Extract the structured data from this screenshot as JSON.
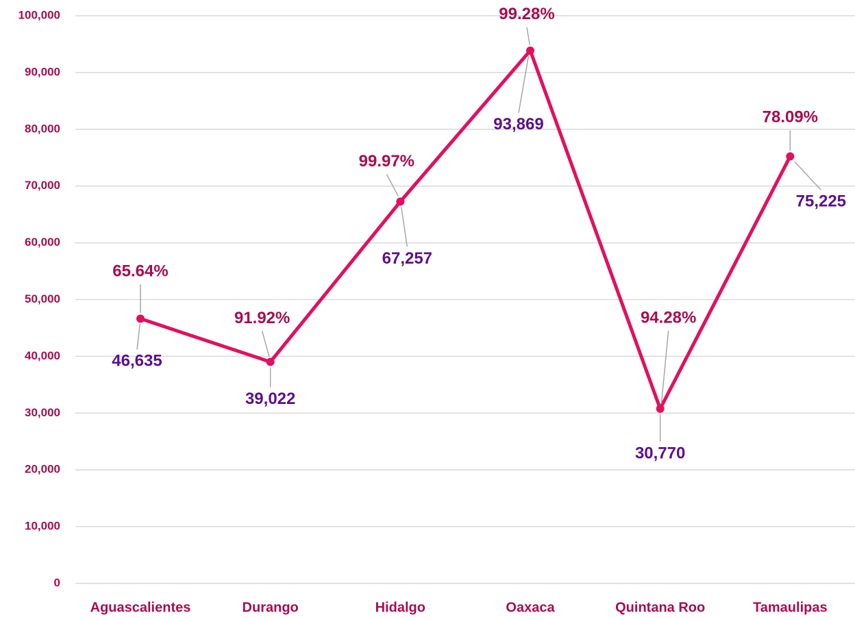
{
  "chart_data": {
    "type": "line",
    "categories": [
      "Aguascalientes",
      "Durango",
      "Hidalgo",
      "Oaxaca",
      "Quintana Roo",
      "Tamaulipas"
    ],
    "series": [
      {
        "color": "#e0115f",
        "values": [
          46635,
          39022,
          67257,
          93869,
          30770,
          75225
        ],
        "value_labels": [
          "46,635",
          "39,022",
          "67,257",
          "93,869",
          "30,770",
          "75,225"
        ]
      }
    ],
    "annotations": [
      "65.64%",
      "91.92%",
      "99.97%",
      "99.28%",
      "94.28%",
      "78.09%"
    ],
    "ylim": [
      0,
      100000
    ],
    "yticks": [
      {
        "value": 0,
        "label": "0"
      },
      {
        "value": 10000,
        "label": "10,000"
      },
      {
        "value": 20000,
        "label": "20,000"
      },
      {
        "value": 30000,
        "label": "30,000"
      },
      {
        "value": 40000,
        "label": "40,000"
      },
      {
        "value": 50000,
        "label": "50,000"
      },
      {
        "value": 60000,
        "label": "60,000"
      },
      {
        "value": 70000,
        "label": "70,000"
      },
      {
        "value": 80000,
        "label": "80,000"
      },
      {
        "value": 90000,
        "label": "90,000"
      },
      {
        "value": 100000,
        "label": "100,000"
      }
    ],
    "grid": true
  }
}
